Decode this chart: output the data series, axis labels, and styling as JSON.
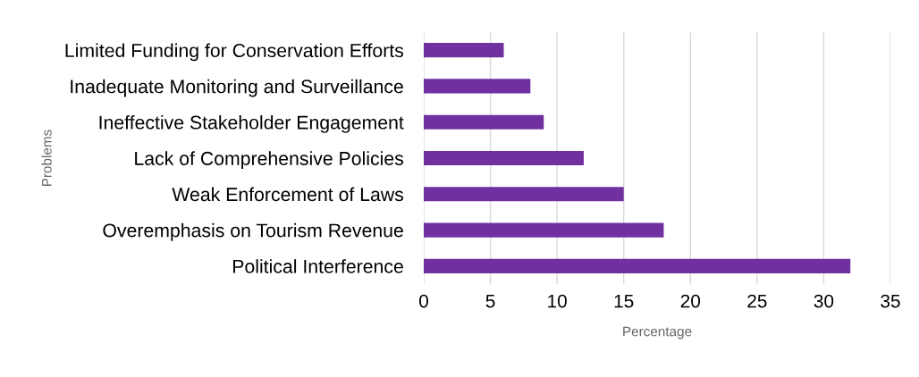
{
  "chart_data": {
    "type": "bar",
    "orientation": "horizontal",
    "xlabel": "Percentage",
    "ylabel": "Problems",
    "categories": [
      "Limited Funding for Conservation Efforts",
      "Inadequate Monitoring and Surveillance",
      "Ineffective Stakeholder Engagement",
      "Lack of Comprehensive Policies",
      "Weak Enforcement of Laws",
      "Overemphasis on Tourism Revenue",
      "Political Interference"
    ],
    "values": [
      6,
      8,
      9,
      12,
      15,
      18,
      32
    ],
    "color": "#7030a0",
    "xlim": [
      0,
      35
    ],
    "xticks": [
      0,
      5,
      10,
      15,
      20,
      25,
      30,
      35
    ],
    "grid": "x",
    "legend": false
  }
}
